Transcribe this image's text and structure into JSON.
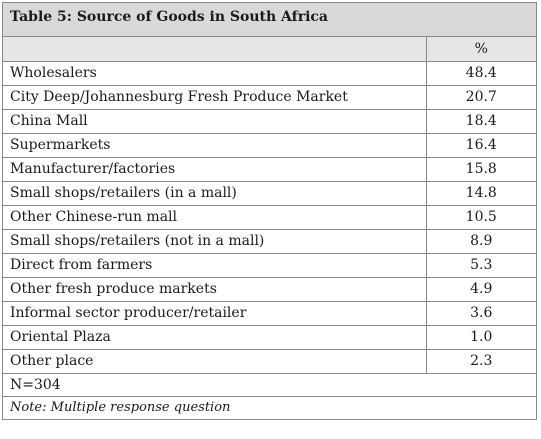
{
  "title": "Table 5: Source of Goods in South Africa",
  "header": {
    "label": "",
    "value": "%"
  },
  "rows": [
    {
      "label": "Wholesalers",
      "value": "48.4"
    },
    {
      "label": "City Deep/Johannesburg Fresh Produce Market",
      "value": "20.7"
    },
    {
      "label": "China Mall",
      "value": "18.4"
    },
    {
      "label": "Supermarkets",
      "value": "16.4"
    },
    {
      "label": "Manufacturer/factories",
      "value": "15.8"
    },
    {
      "label": "Small shops/retailers (in a mall)",
      "value": "14.8"
    },
    {
      "label": "Other Chinese-run mall",
      "value": "10.5"
    },
    {
      "label": "Small shops/retailers (not in a mall)",
      "value": "8.9"
    },
    {
      "label": "Direct from farmers",
      "value": "5.3"
    },
    {
      "label": "Other fresh produce markets",
      "value": "4.9"
    },
    {
      "label": "Informal sector producer/retailer",
      "value": "3.6"
    },
    {
      "label": "Oriental Plaza",
      "value": "1.0"
    },
    {
      "label": "Other place",
      "value": "2.3"
    }
  ],
  "sample_size": "N=304",
  "note": "Note: Multiple response question"
}
